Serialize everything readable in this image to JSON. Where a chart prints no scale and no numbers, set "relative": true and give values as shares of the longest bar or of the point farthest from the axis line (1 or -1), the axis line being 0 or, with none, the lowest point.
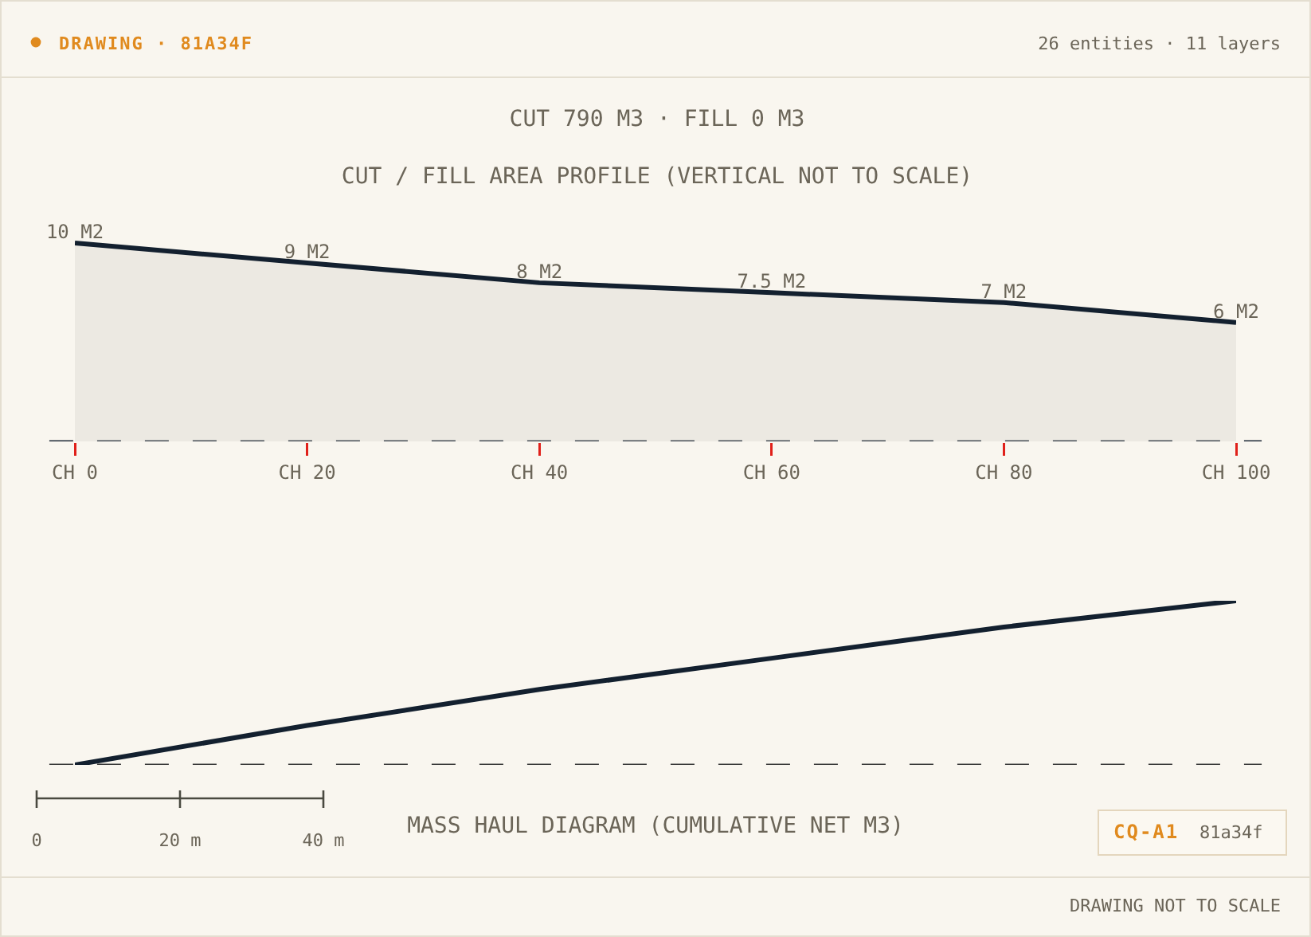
{
  "chart_data": [
    {
      "type": "area",
      "title": "CUT 790 M3 · FILL 0 M3",
      "subtitle": "CUT / FILL AREA PROFILE (VERTICAL NOT TO SCALE)",
      "categories": [
        "CH 0",
        "CH 20",
        "CH 40",
        "CH 60",
        "CH 80",
        "CH 100"
      ],
      "series": [
        {
          "color": "#13202f",
          "values": [
            10,
            9,
            8,
            7.5,
            7,
            6
          ],
          "value_labels": [
            "10 M2",
            "9 M2",
            "8 M2",
            "7.5 M2",
            "7 M2",
            "6 M2"
          ]
        }
      ],
      "tick_labels": "x",
      "ref_lines": [
        {
          "axis": "y",
          "value": 0,
          "color": "#1d2836",
          "line_style": "dashed"
        }
      ],
      "annotations": [
        "DRAWING · 81A34F",
        "26 entities · 11 layers"
      ]
    },
    {
      "type": "line",
      "xlabel": "MASS HAUL DIAGRAM (CUMULATIVE NET M3)",
      "categories": [
        null,
        null,
        null,
        null,
        null,
        null
      ],
      "series": [
        {
          "color": "#13202f",
          "values": [
            0,
            0.24,
            0.46,
            0.65,
            0.84,
            1
          ]
        }
      ],
      "relative": true,
      "tick_labels": false,
      "ref_lines": [
        {
          "axis": "y",
          "value": 0,
          "color": "#3a3a3a",
          "line_style": "dashed"
        }
      ],
      "annotations": [
        "0",
        "20 m",
        "40 m",
        "CQ-A1",
        "81a34f",
        "DRAWING NOT TO SCALE"
      ]
    }
  ]
}
